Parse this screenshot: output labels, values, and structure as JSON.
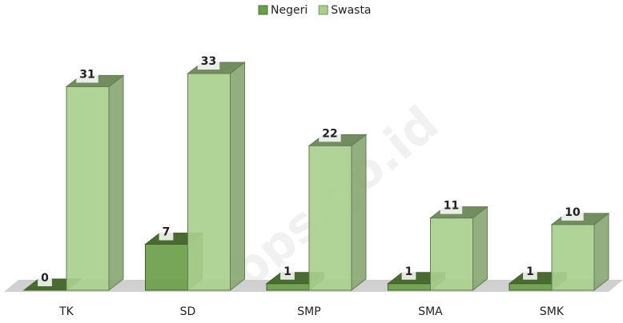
{
  "chart_data": {
    "type": "bar3d",
    "categories": [
      "TK",
      "SD",
      "SMP",
      "SMA",
      "SMK"
    ],
    "series": [
      {
        "name": "Negeri",
        "color": "#6b9e48",
        "values": [
          0,
          7,
          1,
          1,
          1
        ]
      },
      {
        "name": "Swasta",
        "color": "#a9cf8e",
        "values": [
          31,
          33,
          22,
          11,
          10
        ]
      }
    ],
    "legend": "top",
    "watermark": "bps.go.id"
  }
}
